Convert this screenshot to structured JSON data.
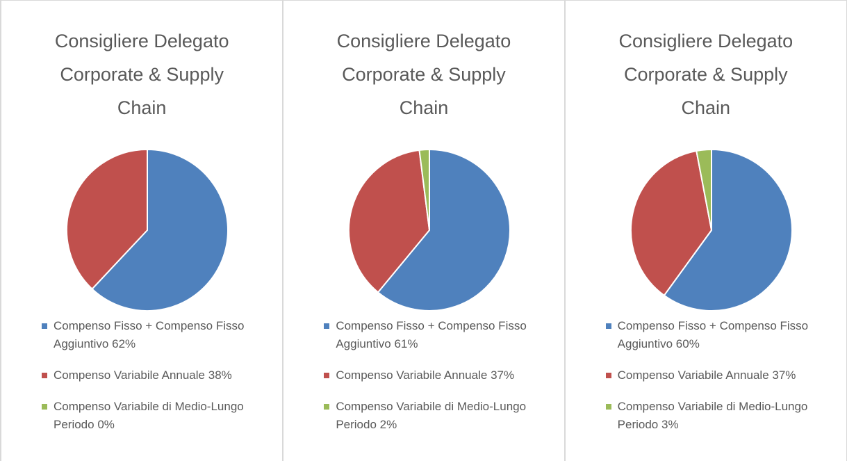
{
  "chart_data": [
    {
      "type": "pie",
      "title": "Consigliere Delegato Corporate & Supply Chain",
      "categories": [
        "Compenso Fisso + Compenso Fisso Aggiuntivo",
        "Compenso Variabile Annuale",
        "Compenso Variabile di Medio-Lungo Periodo"
      ],
      "values": [
        62,
        38,
        0
      ],
      "value_labels": [
        "62%",
        "38%",
        "0%"
      ],
      "colors": [
        "#4f81bd",
        "#c0504d",
        "#9bbb59"
      ]
    },
    {
      "type": "pie",
      "title": "Consigliere Delegato Corporate & Supply Chain",
      "categories": [
        "Compenso Fisso + Compenso Fisso Aggiuntivo",
        "Compenso Variabile Annuale",
        "Compenso Variabile di Medio-Lungo Periodo"
      ],
      "values": [
        61,
        37,
        2
      ],
      "value_labels": [
        "61%",
        "37%",
        "2%"
      ],
      "colors": [
        "#4f81bd",
        "#c0504d",
        "#9bbb59"
      ]
    },
    {
      "type": "pie",
      "title": "Consigliere Delegato Corporate & Supply Chain",
      "categories": [
        "Compenso Fisso + Compenso Fisso Aggiuntivo",
        "Compenso Variabile Annuale",
        "Compenso Variabile di Medio-Lungo Periodo"
      ],
      "values": [
        60,
        37,
        3
      ],
      "value_labels": [
        "60%",
        "37%",
        "3%"
      ],
      "colors": [
        "#4f81bd",
        "#c0504d",
        "#9bbb59"
      ]
    }
  ]
}
